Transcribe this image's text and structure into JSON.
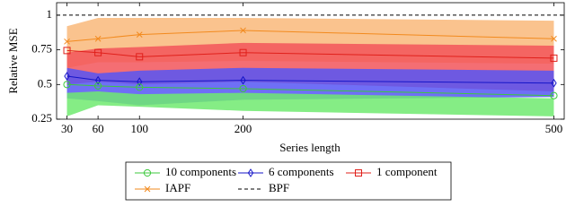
{
  "chart_data": {
    "type": "line",
    "xlabel": "Series length",
    "ylabel": "Relative MSE",
    "x": [
      30,
      60,
      100,
      200,
      500
    ],
    "xlim": [
      20,
      510
    ],
    "xticks": [
      30,
      60,
      100,
      200,
      500
    ],
    "ylim": [
      0.25,
      1.09
    ],
    "yticks": [
      0.25,
      0.5,
      0.75,
      1
    ],
    "series": [
      {
        "name": "IAPF",
        "color": "#f28a1e",
        "band_color": "#f9b97a",
        "marker": "x",
        "values": [
          0.81,
          0.83,
          0.86,
          0.89,
          0.83
        ],
        "band_lower": [
          0.62,
          0.66,
          0.66,
          0.67,
          0.65
        ],
        "band_upper": [
          0.92,
          0.98,
          0.98,
          0.98,
          0.96
        ]
      },
      {
        "name": "1 component",
        "color": "#e0201b",
        "band_color": "#f2555a",
        "marker": "square",
        "values": [
          0.745,
          0.73,
          0.7,
          0.73,
          0.69
        ],
        "band_lower": [
          0.5,
          0.52,
          0.5,
          0.52,
          0.45
        ],
        "band_upper": [
          0.73,
          0.76,
          0.77,
          0.8,
          0.78
        ]
      },
      {
        "name": "6 components",
        "color": "#1515c8",
        "band_color": "#5656f5",
        "marker": "diamond",
        "values": [
          0.56,
          0.53,
          0.52,
          0.53,
          0.51
        ],
        "band_lower": [
          0.4,
          0.38,
          0.35,
          0.39,
          0.41
        ],
        "band_upper": [
          0.62,
          0.58,
          0.6,
          0.62,
          0.6
        ]
      },
      {
        "name": "10 components",
        "color": "#3cc83c",
        "band_color": "#70ea70",
        "marker": "circle",
        "values": [
          0.5,
          0.49,
          0.48,
          0.47,
          0.42
        ],
        "band_lower": [
          0.27,
          0.35,
          0.34,
          0.31,
          0.27
        ],
        "band_upper": [
          0.44,
          0.45,
          0.43,
          0.44,
          0.4
        ]
      },
      {
        "name": "BPF",
        "color": "#000000",
        "marker": "dash",
        "value": 1
      }
    ],
    "legend_order": [
      3,
      2,
      1,
      0,
      4
    ]
  }
}
